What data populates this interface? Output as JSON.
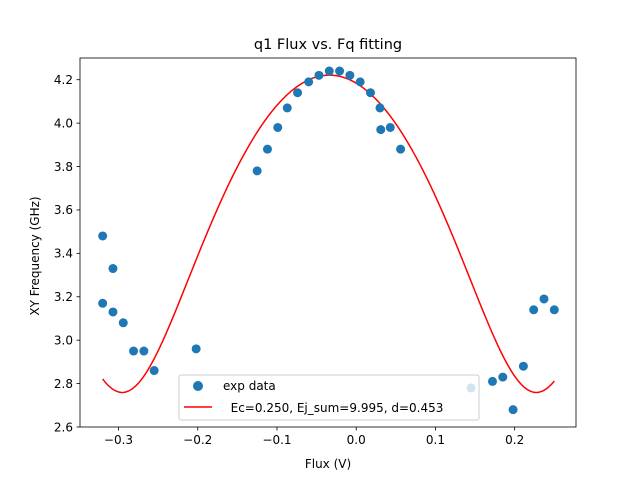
{
  "chart_data": {
    "type": "scatter",
    "title": "q1 Flux vs. Fq fitting",
    "xlabel": "Flux (V)",
    "ylabel": "XY Frequency (GHz)",
    "xlim": [
      -0.3486,
      0.2774
    ],
    "ylim": [
      2.6,
      4.3
    ],
    "xticks": [
      -0.3,
      -0.2,
      -0.1,
      0.0,
      0.1,
      0.2
    ],
    "xtick_labels": [
      "−0.3",
      "−0.2",
      "−0.1",
      "0.0",
      "0.1",
      "0.2"
    ],
    "yticks": [
      2.6,
      2.8,
      3.0,
      3.2,
      3.4,
      3.6,
      3.8,
      4.0,
      4.2
    ],
    "ytick_labels": [
      "2.6",
      "2.8",
      "3.0",
      "3.2",
      "3.4",
      "3.6",
      "3.8",
      "4.0",
      "4.2"
    ],
    "grid": false,
    "legend_position": "lower center",
    "series": [
      {
        "name": "exp data",
        "kind": "scatter",
        "color": "#1f77b4",
        "points": [
          [
            -0.32,
            3.48
          ],
          [
            -0.32,
            3.17
          ],
          [
            -0.307,
            3.33
          ],
          [
            -0.307,
            3.13
          ],
          [
            -0.294,
            3.08
          ],
          [
            -0.281,
            2.95
          ],
          [
            -0.268,
            2.95
          ],
          [
            -0.255,
            2.86
          ],
          [
            -0.202,
            2.96
          ],
          [
            -0.125,
            3.78
          ],
          [
            -0.112,
            3.88
          ],
          [
            -0.099,
            3.98
          ],
          [
            -0.087,
            4.07
          ],
          [
            -0.074,
            4.14
          ],
          [
            -0.06,
            4.19
          ],
          [
            -0.047,
            4.22
          ],
          [
            -0.034,
            4.24
          ],
          [
            -0.021,
            4.24
          ],
          [
            -0.008,
            4.22
          ],
          [
            0.005,
            4.19
          ],
          [
            0.018,
            4.14
          ],
          [
            0.03,
            4.07
          ],
          [
            0.031,
            3.97
          ],
          [
            0.043,
            3.98
          ],
          [
            0.056,
            3.88
          ],
          [
            0.145,
            2.78
          ],
          [
            0.172,
            2.81
          ],
          [
            0.185,
            2.83
          ],
          [
            0.198,
            2.68
          ],
          [
            0.211,
            2.88
          ],
          [
            0.224,
            3.14
          ],
          [
            0.237,
            3.19
          ],
          [
            0.25,
            3.14
          ]
        ]
      },
      {
        "name": "  Ec=0.250, Ej_sum=9.995, d=0.453",
        "kind": "line",
        "color": "#ff0000",
        "x_range": [
          -0.32,
          0.25
        ],
        "model": {
          "Ec": 0.25,
          "Ej_sum": 9.995,
          "d": 0.453
        }
      }
    ]
  }
}
